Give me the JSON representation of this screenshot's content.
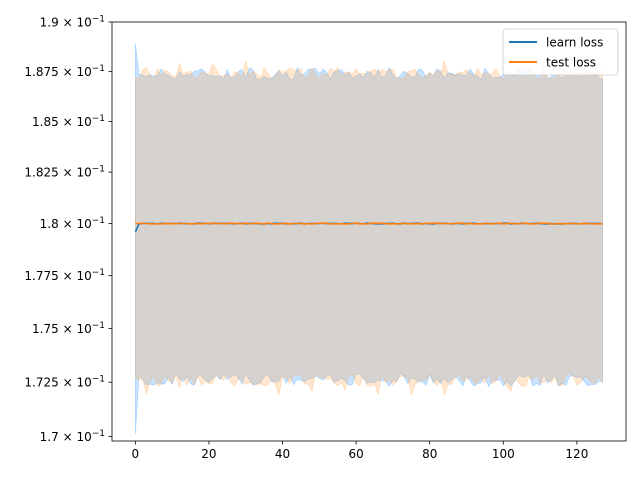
{
  "chart_data": {
    "type": "line",
    "title": "",
    "xlabel": "",
    "ylabel": "",
    "yscale": "log",
    "xlim": [
      -6.35,
      133.35
    ],
    "ylim": [
      0.1698,
      0.19
    ],
    "grid": false,
    "legend_position": "top-right",
    "x_ticks": [
      0,
      20,
      40,
      60,
      80,
      100,
      120
    ],
    "x_tick_labels": [
      "0",
      "20",
      "40",
      "60",
      "80",
      "100",
      "120"
    ],
    "y_ticks": [
      0.17,
      0.1725,
      0.175,
      0.1775,
      0.18,
      0.1825,
      0.185,
      0.1875,
      0.19
    ],
    "y_tick_labels": [
      {
        "mantissa": "1.7",
        "base": "10",
        "exp": "−1"
      },
      {
        "mantissa": "1.725",
        "base": "10",
        "exp": "−1"
      },
      {
        "mantissa": "1.75",
        "base": "10",
        "exp": "−1"
      },
      {
        "mantissa": "1.775",
        "base": "10",
        "exp": "−1"
      },
      {
        "mantissa": "1.8",
        "base": "10",
        "exp": "−1"
      },
      {
        "mantissa": "1.825",
        "base": "10",
        "exp": "−1"
      },
      {
        "mantissa": "1.85",
        "base": "10",
        "exp": "−1"
      },
      {
        "mantissa": "1.875",
        "base": "10",
        "exp": "−1"
      },
      {
        "mantissa": "1.9",
        "base": "10",
        "exp": "−1"
      }
    ],
    "x_range": [
      0,
      127
    ],
    "series": [
      {
        "name": "learn loss",
        "color": "#1f77b4",
        "band_color": "#1f8fff",
        "start_value": 0.1796,
        "mean": 0.18,
        "band_upper_mean": 0.1874,
        "band_lower_mean": 0.1726,
        "band_start_upper": 0.1889,
        "band_start_lower": 0.1701
      },
      {
        "name": "test loss",
        "color": "#ff7f0e",
        "band_color": "#ff9f40",
        "start_value": 0.18,
        "mean": 0.18,
        "band_upper_mean": 0.1874,
        "band_lower_mean": 0.1726,
        "band_start_upper": 0.1872,
        "band_start_lower": 0.1727
      }
    ]
  }
}
